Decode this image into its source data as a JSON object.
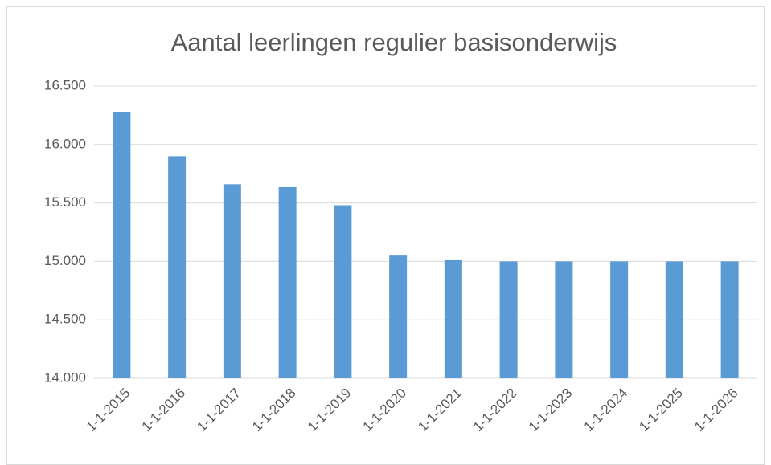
{
  "chart_data": {
    "type": "bar",
    "title": "Aantal leerlingen regulier basisonderwijs",
    "categories": [
      "1-1-2015",
      "1-1-2016",
      "1-1-2017",
      "1-1-2018",
      "1-1-2019",
      "1-1-2020",
      "1-1-2021",
      "1-1-2022",
      "1-1-2023",
      "1-1-2024",
      "1-1-2025",
      "1-1-2026"
    ],
    "values": [
      16280,
      15900,
      15660,
      15635,
      15480,
      15050,
      15010,
      15000,
      15000,
      15000,
      15000,
      15000
    ],
    "color": "#5b9bd5",
    "ylim": [
      14000,
      16500
    ],
    "yticks": [
      {
        "value": 14000,
        "label": "14.000"
      },
      {
        "value": 14500,
        "label": "14.500"
      },
      {
        "value": 15000,
        "label": "15.000"
      },
      {
        "value": 15500,
        "label": "15.500"
      },
      {
        "value": 16000,
        "label": "16.000"
      },
      {
        "value": 16500,
        "label": "16.500"
      }
    ],
    "grid": true
  }
}
